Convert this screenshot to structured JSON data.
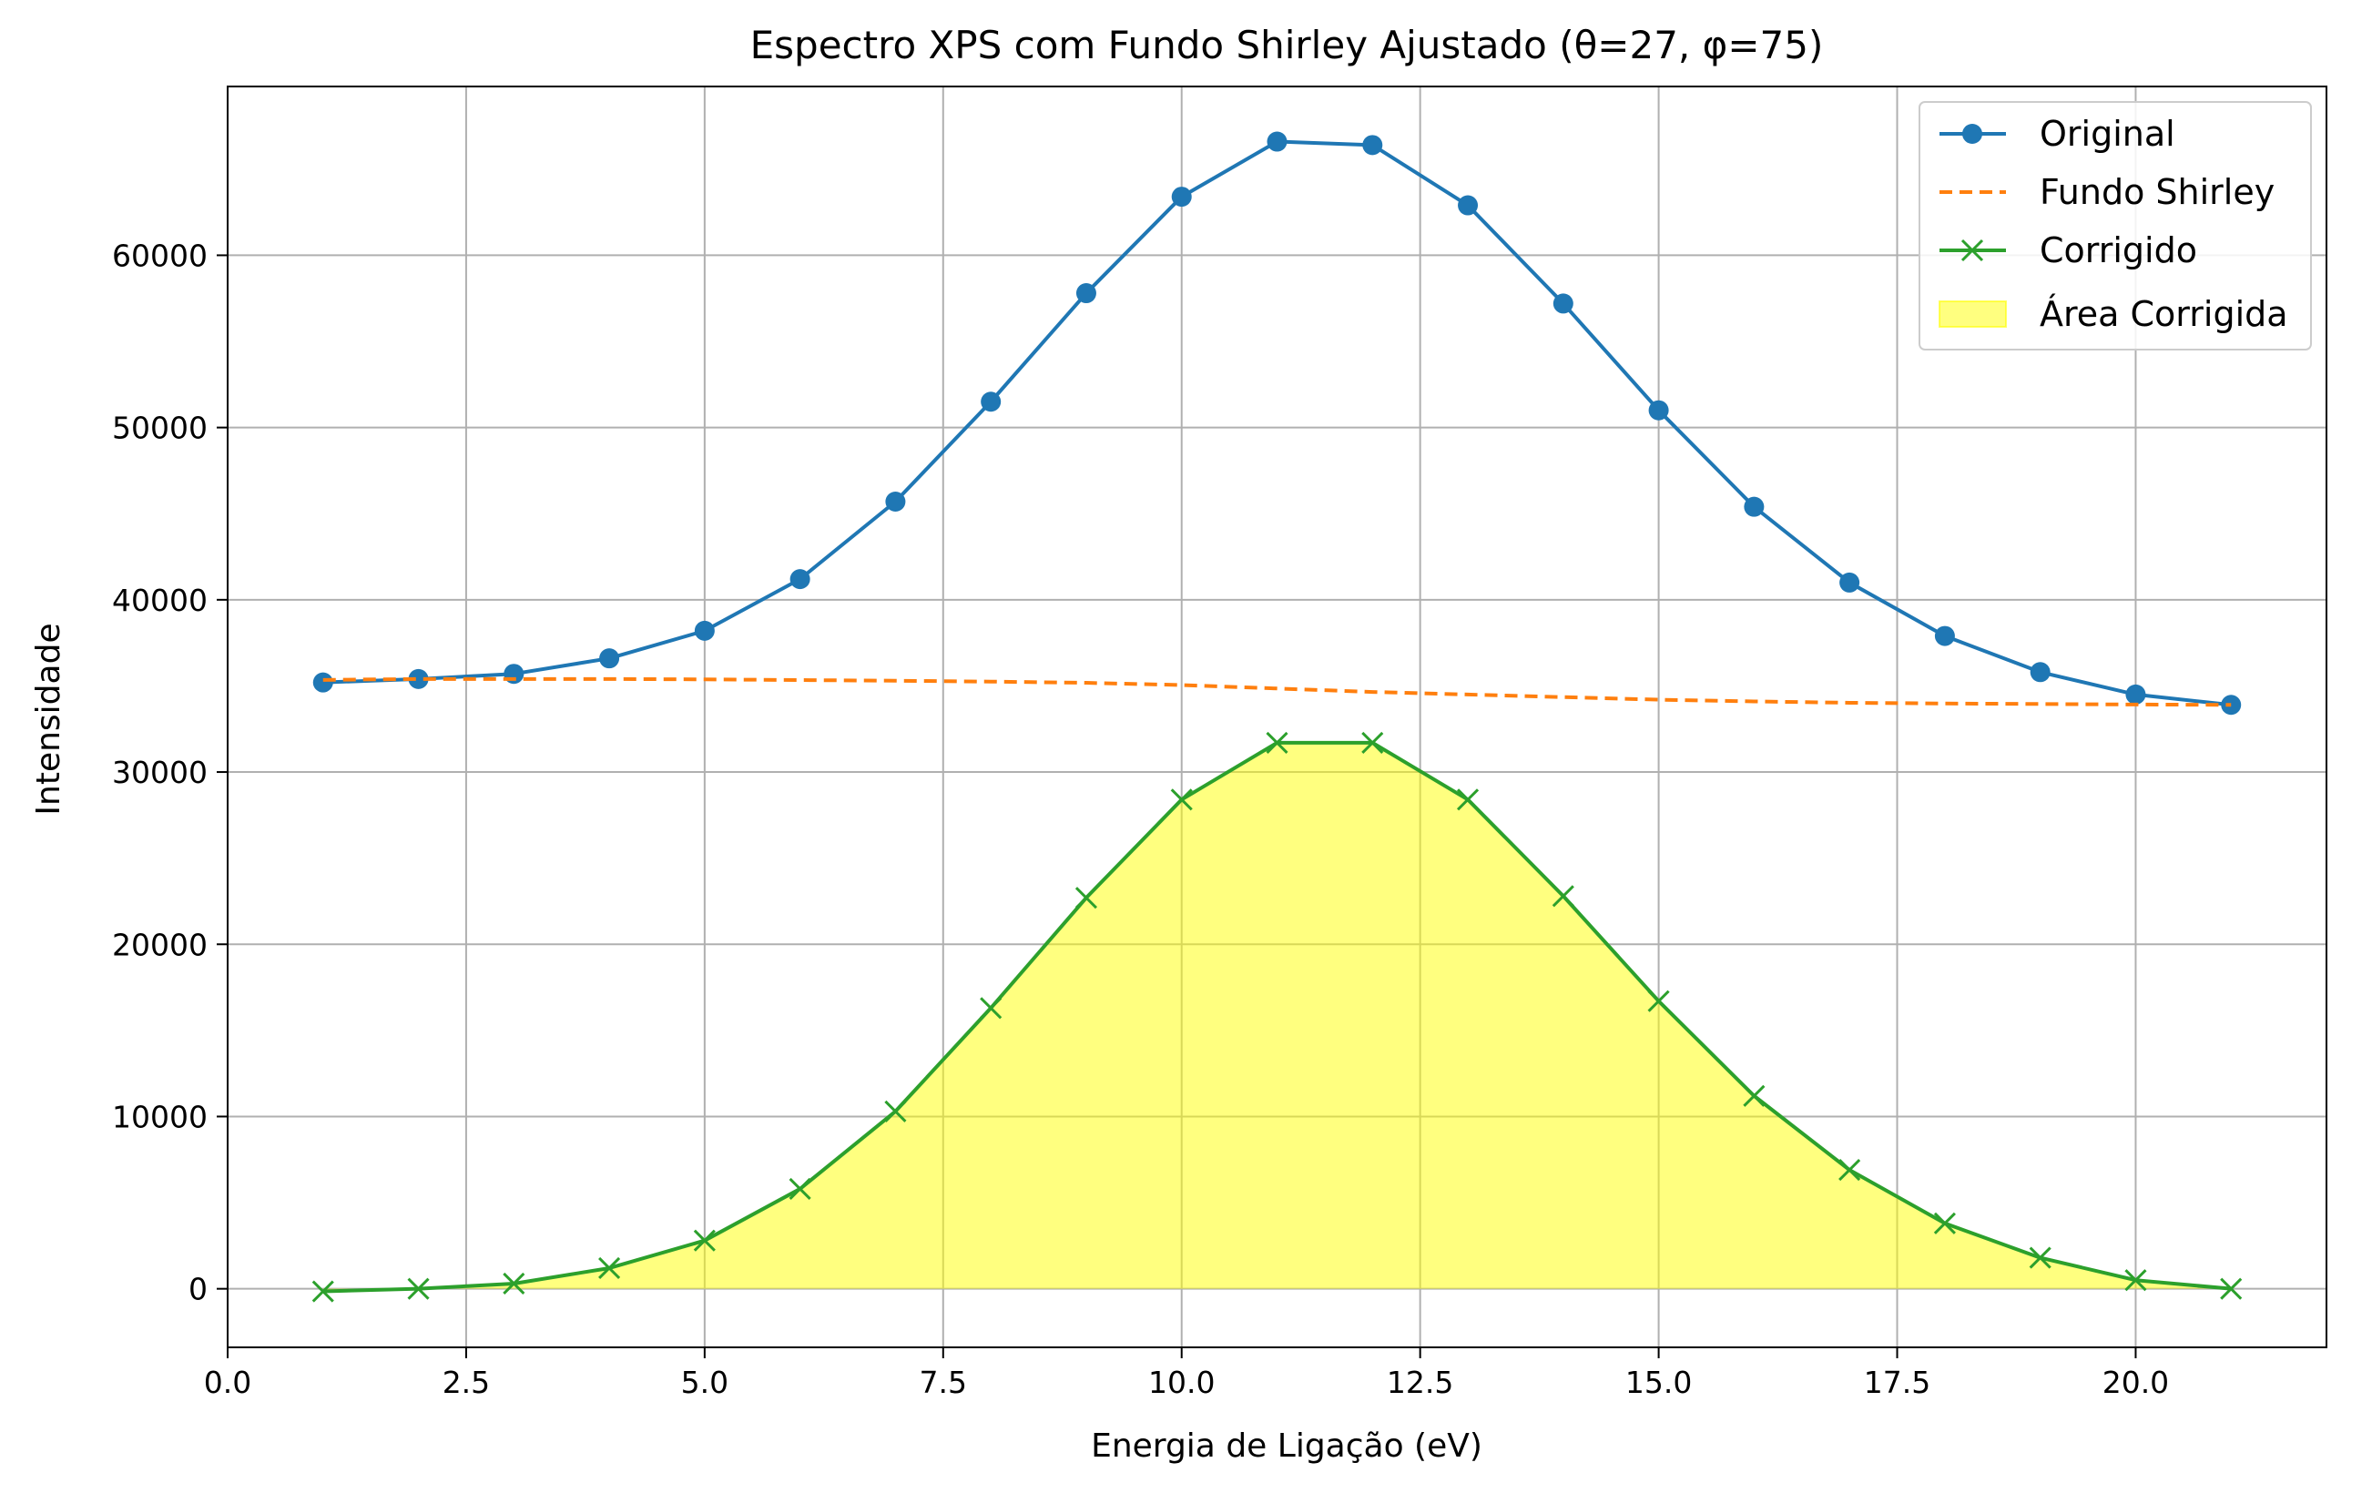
{
  "chart_data": {
    "type": "line",
    "title": "Espectro XPS com Fundo Shirley Ajustado (θ=27, φ=75)",
    "xlabel": "Energia de Ligação (eV)",
    "ylabel": "Intensidade",
    "xlim": [
      0,
      22
    ],
    "ylim": [
      -3400,
      69800
    ],
    "xticks": [
      0,
      2.5,
      5,
      7.5,
      10,
      12.5,
      15,
      17.5,
      20
    ],
    "xtick_labels": [
      "0.0",
      "2.5",
      "5.0",
      "7.5",
      "10.0",
      "12.5",
      "15.0",
      "17.5",
      "20.0"
    ],
    "yticks": [
      0,
      10000,
      20000,
      30000,
      40000,
      50000,
      60000
    ],
    "ytick_labels": [
      "0",
      "10000",
      "20000",
      "30000",
      "40000",
      "50000",
      "60000"
    ],
    "grid": true,
    "legend_position": "top-right",
    "x": [
      1,
      2,
      3,
      4,
      5,
      6,
      7,
      8,
      9,
      10,
      11,
      12,
      13,
      14,
      15,
      16,
      17,
      18,
      19,
      20,
      21
    ],
    "series": [
      {
        "name": "Original",
        "style": "solid-line-circle-markers",
        "color": "#1f77b4",
        "values": [
          35200,
          35400,
          35700,
          36600,
          38200,
          41200,
          45700,
          51500,
          57800,
          63400,
          66600,
          66400,
          62900,
          57200,
          51000,
          45400,
          41000,
          37900,
          35800,
          34500,
          33900
        ]
      },
      {
        "name": "Fundo Shirley",
        "style": "dashed-line",
        "color": "#ff7f0e",
        "values": [
          35350,
          35400,
          35400,
          35400,
          35380,
          35340,
          35300,
          35250,
          35180,
          35050,
          34850,
          34650,
          34500,
          34350,
          34200,
          34100,
          34020,
          33980,
          33950,
          33920,
          33900
        ]
      },
      {
        "name": "Corrigido",
        "style": "solid-line-x-markers",
        "color": "#2ca02c",
        "values": [
          -150,
          0,
          300,
          1200,
          2800,
          5800,
          10300,
          16300,
          22700,
          28400,
          31700,
          31700,
          28400,
          22800,
          16700,
          11200,
          6900,
          3800,
          1800,
          500,
          0
        ]
      }
    ],
    "fill": {
      "name": "Área Corrigida",
      "color": "#ffff00",
      "opacity": 0.5,
      "between": "Corrigido and 0"
    }
  }
}
